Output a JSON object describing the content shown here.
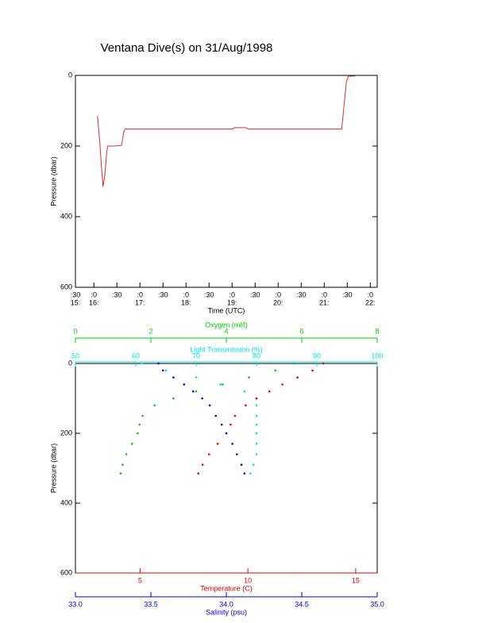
{
  "title": "Ventana Dive(s) on 31/Aug/1998",
  "chart_data": [
    {
      "type": "line",
      "y_label": "Pressure (dbar)",
      "x_label": "Time (UTC)",
      "ylim": [
        0,
        600
      ],
      "y_reversed": true,
      "yticks": [
        0,
        200,
        400,
        600
      ],
      "xlim": [
        15.6,
        22.15
      ],
      "xticks": [
        {
          "value": 15.6,
          "label": ":30"
        },
        {
          "value": 16,
          "label": ":0"
        },
        {
          "value": 16.5,
          "label": ":30"
        },
        {
          "value": 17,
          "label": ":0"
        },
        {
          "value": 17.5,
          "label": ":30"
        },
        {
          "value": 18,
          "label": ":0"
        },
        {
          "value": 18.5,
          "label": ":30"
        },
        {
          "value": 19,
          "label": ":0"
        },
        {
          "value": 19.5,
          "label": ":30"
        },
        {
          "value": 20,
          "label": ":0"
        },
        {
          "value": 20.5,
          "label": ":30"
        },
        {
          "value": 21,
          "label": ":0"
        },
        {
          "value": 21.5,
          "label": ":30"
        },
        {
          "value": 22,
          "label": ":0"
        }
      ],
      "x_hour_labels": [
        {
          "value": 15.6,
          "label": "15:"
        },
        {
          "value": 16,
          "label": "16:"
        },
        {
          "value": 17,
          "label": "17:"
        },
        {
          "value": 18,
          "label": "18:"
        },
        {
          "value": 19,
          "label": "19:"
        },
        {
          "value": 20,
          "label": "20:"
        },
        {
          "value": 21,
          "label": "21:"
        },
        {
          "value": 22,
          "label": "22:"
        }
      ],
      "color": "#d03030",
      "x": [
        16.08,
        16.13,
        16.17,
        16.2,
        16.24,
        16.28,
        16.3,
        16.45,
        16.6,
        16.65,
        16.68,
        17.5,
        18.5,
        19.0,
        19.05,
        19.3,
        19.35,
        20.0,
        21.0,
        21.38,
        21.42,
        21.48,
        21.52,
        21.6,
        21.67
      ],
      "values": [
        115,
        190,
        270,
        315,
        280,
        215,
        200,
        200,
        198,
        160,
        152,
        152,
        152,
        152,
        148,
        148,
        152,
        152,
        152,
        152,
        100,
        20,
        3,
        2,
        2
      ]
    },
    {
      "type": "profile",
      "y_label": "Pressure (dbar)",
      "ylim": [
        0,
        600
      ],
      "y_reversed": true,
      "yticks": [
        0,
        200,
        400,
        600
      ],
      "x_axes": [
        {
          "label": "Oxygen (ml/l)",
          "color": "#00cc00",
          "position": "top",
          "lim": [
            0,
            8
          ],
          "ticks": [
            0,
            2,
            4,
            6,
            8
          ]
        },
        {
          "label": "Light Transmission (%)",
          "color": "#00e0e0",
          "position": "top",
          "lim": [
            50,
            100
          ],
          "ticks": [
            50,
            60,
            70,
            80,
            90,
            100
          ]
        },
        {
          "label": "Temperature (C)",
          "color": "#e00000",
          "position": "bottom",
          "lim": [
            2,
            16
          ],
          "ticks": [
            5,
            10,
            15
          ]
        },
        {
          "label": "Salinity (psu)",
          "color": "#0000cc",
          "position": "bottom",
          "lim": [
            33,
            35
          ],
          "ticks": [
            {
              "value": 33,
              "label": "33.0"
            },
            33.5,
            {
              "value": 34,
              "label": "34.0"
            },
            34.5,
            {
              "value": 35,
              "label": "35.0"
            }
          ]
        }
      ],
      "pressure": [
        0,
        20,
        40,
        60,
        80,
        100,
        120,
        150,
        175,
        200,
        230,
        260,
        290,
        315
      ],
      "series": [
        {
          "axis": 0,
          "color": "#00cc00",
          "values": [
            5.8,
            5.3,
            4.6,
            3.9,
            3.2,
            2.6,
            2.1,
            1.78,
            1.7,
            1.65,
            1.5,
            1.35,
            1.25,
            1.2
          ]
        },
        {
          "axis": 1,
          "color": "#00e0e0",
          "values": [
            61,
            65,
            70,
            74,
            78,
            80,
            80,
            80,
            80,
            80,
            80,
            80,
            79.5,
            79
          ]
        },
        {
          "axis": 2,
          "color": "#e00000",
          "values": [
            13.5,
            13.0,
            12.3,
            11.6,
            11.0,
            10.4,
            9.9,
            9.4,
            9.2,
            9.0,
            8.6,
            8.2,
            7.9,
            7.7
          ]
        },
        {
          "axis": 3,
          "color": "#0000cc",
          "values": [
            33.55,
            33.58,
            33.65,
            33.72,
            33.78,
            33.84,
            33.89,
            33.93,
            33.97,
            34.0,
            34.04,
            34.07,
            34.1,
            34.12
          ]
        }
      ]
    }
  ]
}
